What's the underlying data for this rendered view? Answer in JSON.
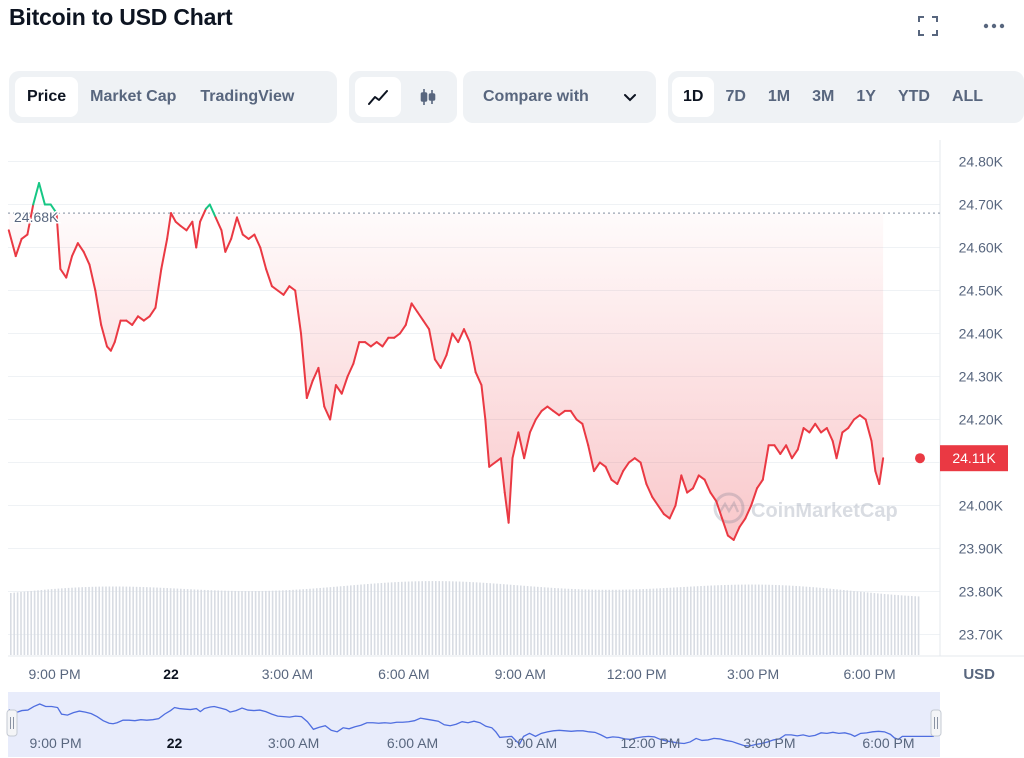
{
  "title": "Bitcoin to USD Chart",
  "tabs": [
    "Price",
    "Market Cap",
    "TradingView"
  ],
  "active_tab": "Price",
  "chart_types": [
    "line-chart-icon",
    "candlestick-icon"
  ],
  "compare": {
    "label": "Compare with"
  },
  "ranges": [
    "1D",
    "7D",
    "1M",
    "3M",
    "1Y",
    "YTD",
    "ALL"
  ],
  "active_range": "1D",
  "watermark": "CoinMarketCap",
  "colors": {
    "down": "#ea3943",
    "up": "#16c784",
    "nav_line": "#4f6ee0",
    "axis_text": "#58667e"
  },
  "chart_data": {
    "type": "line",
    "currency": "USD",
    "y_axis_label": "USD",
    "y_ticks": [
      "24.80K",
      "24.70K",
      "24.60K",
      "24.50K",
      "24.40K",
      "24.30K",
      "24.20K",
      "24.10K",
      "24.00K",
      "23.90K",
      "23.80K",
      "23.70K"
    ],
    "ylim": [
      23.65,
      24.85
    ],
    "y_unit": "thousand USD",
    "x_ticks": [
      "9:00 PM",
      "22",
      "3:00 AM",
      "6:00 AM",
      "9:00 AM",
      "12:00 PM",
      "3:00 PM",
      "6:00 PM"
    ],
    "xlim": [
      -4.2,
      19.3
    ],
    "x_unit": "hours relative to 22 00:00",
    "open_price_label": "24.68K",
    "open_price": 24.68,
    "current_price_label": "24.11K",
    "current_price": 24.11,
    "series": [
      {
        "values": [
          [
            -4.18,
            24.64
          ],
          [
            -4.0,
            24.58
          ],
          [
            -3.85,
            24.62
          ],
          [
            -3.7,
            24.63
          ],
          [
            -3.55,
            24.7
          ],
          [
            -3.4,
            24.75
          ],
          [
            -3.25,
            24.7
          ],
          [
            -3.1,
            24.7
          ],
          [
            -2.95,
            24.68
          ],
          [
            -2.85,
            24.55
          ],
          [
            -2.7,
            24.53
          ],
          [
            -2.55,
            24.58
          ],
          [
            -2.4,
            24.61
          ],
          [
            -2.25,
            24.59
          ],
          [
            -2.1,
            24.56
          ],
          [
            -1.95,
            24.5
          ],
          [
            -1.8,
            24.42
          ],
          [
            -1.65,
            24.37
          ],
          [
            -1.55,
            24.36
          ],
          [
            -1.45,
            24.38
          ],
          [
            -1.3,
            24.43
          ],
          [
            -1.15,
            24.43
          ],
          [
            -1.0,
            24.42
          ],
          [
            -0.85,
            24.44
          ],
          [
            -0.7,
            24.43
          ],
          [
            -0.55,
            24.44
          ],
          [
            -0.4,
            24.46
          ],
          [
            -0.25,
            24.55
          ],
          [
            -0.1,
            24.62
          ],
          [
            0.0,
            24.68
          ],
          [
            0.12,
            24.66
          ],
          [
            0.25,
            24.65
          ],
          [
            0.4,
            24.64
          ],
          [
            0.55,
            24.66
          ],
          [
            0.65,
            24.6
          ],
          [
            0.75,
            24.66
          ],
          [
            0.9,
            24.69
          ],
          [
            1.0,
            24.7
          ],
          [
            1.15,
            24.67
          ],
          [
            1.3,
            24.64
          ],
          [
            1.4,
            24.59
          ],
          [
            1.55,
            24.62
          ],
          [
            1.7,
            24.67
          ],
          [
            1.85,
            24.63
          ],
          [
            2.0,
            24.62
          ],
          [
            2.15,
            24.63
          ],
          [
            2.3,
            24.6
          ],
          [
            2.45,
            24.55
          ],
          [
            2.6,
            24.51
          ],
          [
            2.75,
            24.5
          ],
          [
            2.9,
            24.49
          ],
          [
            3.05,
            24.51
          ],
          [
            3.2,
            24.5
          ],
          [
            3.35,
            24.4
          ],
          [
            3.5,
            24.25
          ],
          [
            3.65,
            24.29
          ],
          [
            3.8,
            24.32
          ],
          [
            3.95,
            24.23
          ],
          [
            4.1,
            24.2
          ],
          [
            4.25,
            24.28
          ],
          [
            4.4,
            24.26
          ],
          [
            4.55,
            24.3
          ],
          [
            4.7,
            24.33
          ],
          [
            4.85,
            24.38
          ],
          [
            5.0,
            24.38
          ],
          [
            5.15,
            24.37
          ],
          [
            5.3,
            24.38
          ],
          [
            5.45,
            24.37
          ],
          [
            5.6,
            24.39
          ],
          [
            5.75,
            24.39
          ],
          [
            5.9,
            24.4
          ],
          [
            6.05,
            24.42
          ],
          [
            6.2,
            24.47
          ],
          [
            6.35,
            24.45
          ],
          [
            6.5,
            24.43
          ],
          [
            6.65,
            24.41
          ],
          [
            6.8,
            24.34
          ],
          [
            6.95,
            24.32
          ],
          [
            7.1,
            24.35
          ],
          [
            7.25,
            24.4
          ],
          [
            7.4,
            24.38
          ],
          [
            7.55,
            24.41
          ],
          [
            7.7,
            24.38
          ],
          [
            7.85,
            24.31
          ],
          [
            8.0,
            24.28
          ],
          [
            8.1,
            24.2
          ],
          [
            8.2,
            24.09
          ],
          [
            8.35,
            24.1
          ],
          [
            8.5,
            24.11
          ],
          [
            8.6,
            24.03
          ],
          [
            8.7,
            23.96
          ],
          [
            8.8,
            24.11
          ],
          [
            8.95,
            24.17
          ],
          [
            9.1,
            24.11
          ],
          [
            9.25,
            24.17
          ],
          [
            9.4,
            24.2
          ],
          [
            9.55,
            24.22
          ],
          [
            9.7,
            24.23
          ],
          [
            9.85,
            24.22
          ],
          [
            10.0,
            24.21
          ],
          [
            10.15,
            24.22
          ],
          [
            10.3,
            24.22
          ],
          [
            10.45,
            24.2
          ],
          [
            10.6,
            24.19
          ],
          [
            10.75,
            24.14
          ],
          [
            10.9,
            24.08
          ],
          [
            11.05,
            24.1
          ],
          [
            11.2,
            24.09
          ],
          [
            11.35,
            24.06
          ],
          [
            11.5,
            24.05
          ],
          [
            11.65,
            24.08
          ],
          [
            11.8,
            24.1
          ],
          [
            11.95,
            24.11
          ],
          [
            12.1,
            24.1
          ],
          [
            12.25,
            24.05
          ],
          [
            12.4,
            24.02
          ],
          [
            12.55,
            24.0
          ],
          [
            12.7,
            23.98
          ],
          [
            12.85,
            23.97
          ],
          [
            13.0,
            24.0
          ],
          [
            13.15,
            24.07
          ],
          [
            13.3,
            24.03
          ],
          [
            13.45,
            24.04
          ],
          [
            13.6,
            24.07
          ],
          [
            13.75,
            24.06
          ],
          [
            13.9,
            24.03
          ],
          [
            14.05,
            24.01
          ],
          [
            14.2,
            23.97
          ],
          [
            14.35,
            23.93
          ],
          [
            14.5,
            23.92
          ],
          [
            14.65,
            23.95
          ],
          [
            14.8,
            23.97
          ],
          [
            14.95,
            24.0
          ],
          [
            15.1,
            24.04
          ],
          [
            15.25,
            24.06
          ],
          [
            15.4,
            24.14
          ],
          [
            15.55,
            24.14
          ],
          [
            15.7,
            24.12
          ],
          [
            15.85,
            24.14
          ],
          [
            16.0,
            24.11
          ],
          [
            16.15,
            24.13
          ],
          [
            16.3,
            24.18
          ],
          [
            16.45,
            24.17
          ],
          [
            16.6,
            24.19
          ],
          [
            16.75,
            24.17
          ],
          [
            16.9,
            24.18
          ],
          [
            17.05,
            24.15
          ],
          [
            17.15,
            24.11
          ],
          [
            17.3,
            24.17
          ],
          [
            17.45,
            24.18
          ],
          [
            17.6,
            24.2
          ],
          [
            17.75,
            24.21
          ],
          [
            17.9,
            24.2
          ],
          [
            18.05,
            24.15
          ],
          [
            18.15,
            24.08
          ],
          [
            18.25,
            24.05
          ],
          [
            18.35,
            24.11
          ]
        ]
      }
    ],
    "volume_note": "relative volume bars under price",
    "navigator": {
      "x_ticks": [
        "9:00 PM",
        "22",
        "3:00 AM",
        "6:00 AM",
        "9:00 AM",
        "12:00 PM",
        "3:00 PM",
        "6:00 PM"
      ]
    }
  }
}
